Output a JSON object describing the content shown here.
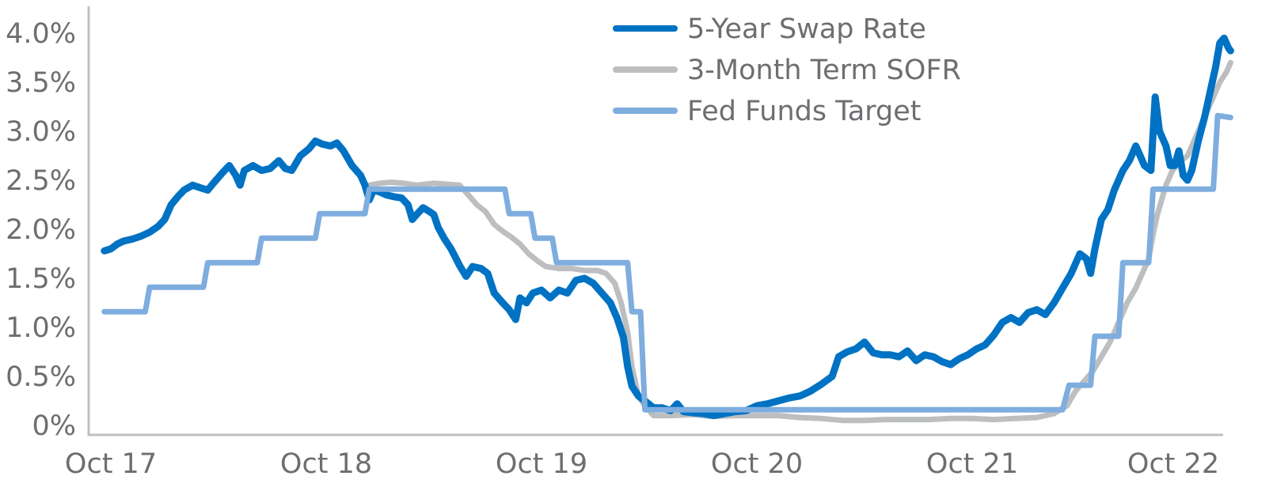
{
  "chart_data": {
    "type": "line",
    "title": "",
    "xlabel": "",
    "ylabel": "",
    "ylim": [
      0,
      4.0
    ],
    "xlim": [
      0,
      5
    ],
    "grid": false,
    "legend_position": "top-center",
    "y_ticks": [
      {
        "value": 4.0,
        "label": "4.0%"
      },
      {
        "value": 3.5,
        "label": "3.5%"
      },
      {
        "value": 3.0,
        "label": "3.0%"
      },
      {
        "value": 2.5,
        "label": "2.5%"
      },
      {
        "value": 2.0,
        "label": "2.0%"
      },
      {
        "value": 1.5,
        "label": "1.5%"
      },
      {
        "value": 1.0,
        "label": "1.0%"
      },
      {
        "value": 0.5,
        "label": "0.5%"
      },
      {
        "value": 0.0,
        "label": "0%"
      }
    ],
    "x_ticks": [
      {
        "value": 0,
        "label": "Oct 17"
      },
      {
        "value": 1,
        "label": "Oct 18"
      },
      {
        "value": 2,
        "label": "Oct 19"
      },
      {
        "value": 3,
        "label": "Oct 20"
      },
      {
        "value": 4,
        "label": "Oct 21"
      },
      {
        "value": 5,
        "label": "Oct 22"
      }
    ],
    "series": [
      {
        "name": "5-Year Swap Rate",
        "color": "#0072c3",
        "points": [
          [
            -0.03,
            1.78
          ],
          [
            0.0,
            1.8
          ],
          [
            0.03,
            1.85
          ],
          [
            0.06,
            1.88
          ],
          [
            0.1,
            1.9
          ],
          [
            0.14,
            1.93
          ],
          [
            0.18,
            1.97
          ],
          [
            0.22,
            2.03
          ],
          [
            0.25,
            2.1
          ],
          [
            0.28,
            2.25
          ],
          [
            0.31,
            2.33
          ],
          [
            0.34,
            2.4
          ],
          [
            0.38,
            2.45
          ],
          [
            0.42,
            2.42
          ],
          [
            0.45,
            2.4
          ],
          [
            0.48,
            2.48
          ],
          [
            0.52,
            2.58
          ],
          [
            0.55,
            2.65
          ],
          [
            0.58,
            2.55
          ],
          [
            0.6,
            2.45
          ],
          [
            0.62,
            2.6
          ],
          [
            0.66,
            2.65
          ],
          [
            0.7,
            2.6
          ],
          [
            0.74,
            2.62
          ],
          [
            0.78,
            2.7
          ],
          [
            0.81,
            2.62
          ],
          [
            0.84,
            2.6
          ],
          [
            0.88,
            2.75
          ],
          [
            0.92,
            2.82
          ],
          [
            0.95,
            2.9
          ],
          [
            0.98,
            2.87
          ],
          [
            1.02,
            2.85
          ],
          [
            1.05,
            2.88
          ],
          [
            1.08,
            2.8
          ],
          [
            1.12,
            2.65
          ],
          [
            1.16,
            2.55
          ],
          [
            1.18,
            2.45
          ],
          [
            1.2,
            2.3
          ],
          [
            1.22,
            2.4
          ],
          [
            1.25,
            2.38
          ],
          [
            1.28,
            2.35
          ],
          [
            1.32,
            2.33
          ],
          [
            1.35,
            2.32
          ],
          [
            1.38,
            2.25
          ],
          [
            1.4,
            2.1
          ],
          [
            1.42,
            2.15
          ],
          [
            1.45,
            2.22
          ],
          [
            1.48,
            2.18
          ],
          [
            1.5,
            2.15
          ],
          [
            1.52,
            2.02
          ],
          [
            1.55,
            1.9
          ],
          [
            1.58,
            1.8
          ],
          [
            1.62,
            1.63
          ],
          [
            1.65,
            1.52
          ],
          [
            1.68,
            1.62
          ],
          [
            1.72,
            1.6
          ],
          [
            1.75,
            1.55
          ],
          [
            1.78,
            1.35
          ],
          [
            1.82,
            1.25
          ],
          [
            1.85,
            1.18
          ],
          [
            1.88,
            1.08
          ],
          [
            1.9,
            1.3
          ],
          [
            1.93,
            1.25
          ],
          [
            1.96,
            1.35
          ],
          [
            2.0,
            1.38
          ],
          [
            2.04,
            1.3
          ],
          [
            2.08,
            1.38
          ],
          [
            2.12,
            1.35
          ],
          [
            2.16,
            1.48
          ],
          [
            2.2,
            1.5
          ],
          [
            2.24,
            1.45
          ],
          [
            2.28,
            1.35
          ],
          [
            2.32,
            1.25
          ],
          [
            2.35,
            1.1
          ],
          [
            2.38,
            0.9
          ],
          [
            2.4,
            0.6
          ],
          [
            2.42,
            0.4
          ],
          [
            2.45,
            0.3
          ],
          [
            2.48,
            0.25
          ],
          [
            2.52,
            0.18
          ],
          [
            2.56,
            0.18
          ],
          [
            2.6,
            0.15
          ],
          [
            2.63,
            0.22
          ],
          [
            2.66,
            0.14
          ],
          [
            2.7,
            0.13
          ],
          [
            2.75,
            0.12
          ],
          [
            2.8,
            0.1
          ],
          [
            2.85,
            0.12
          ],
          [
            2.9,
            0.14
          ],
          [
            2.95,
            0.15
          ],
          [
            3.0,
            0.2
          ],
          [
            3.05,
            0.22
          ],
          [
            3.1,
            0.25
          ],
          [
            3.15,
            0.28
          ],
          [
            3.2,
            0.3
          ],
          [
            3.25,
            0.35
          ],
          [
            3.3,
            0.42
          ],
          [
            3.35,
            0.5
          ],
          [
            3.38,
            0.7
          ],
          [
            3.42,
            0.75
          ],
          [
            3.46,
            0.78
          ],
          [
            3.5,
            0.85
          ],
          [
            3.54,
            0.74
          ],
          [
            3.58,
            0.72
          ],
          [
            3.62,
            0.72
          ],
          [
            3.66,
            0.7
          ],
          [
            3.7,
            0.76
          ],
          [
            3.74,
            0.66
          ],
          [
            3.78,
            0.72
          ],
          [
            3.82,
            0.7
          ],
          [
            3.86,
            0.65
          ],
          [
            3.9,
            0.62
          ],
          [
            3.94,
            0.68
          ],
          [
            3.98,
            0.72
          ],
          [
            4.02,
            0.78
          ],
          [
            4.06,
            0.82
          ],
          [
            4.1,
            0.92
          ],
          [
            4.14,
            1.05
          ],
          [
            4.18,
            1.1
          ],
          [
            4.22,
            1.05
          ],
          [
            4.26,
            1.15
          ],
          [
            4.3,
            1.18
          ],
          [
            4.34,
            1.13
          ],
          [
            4.38,
            1.25
          ],
          [
            4.42,
            1.4
          ],
          [
            4.46,
            1.55
          ],
          [
            4.5,
            1.75
          ],
          [
            4.53,
            1.7
          ],
          [
            4.55,
            1.55
          ],
          [
            4.57,
            1.8
          ],
          [
            4.6,
            2.1
          ],
          [
            4.63,
            2.2
          ],
          [
            4.66,
            2.4
          ],
          [
            4.7,
            2.6
          ],
          [
            4.73,
            2.7
          ],
          [
            4.76,
            2.85
          ],
          [
            4.78,
            2.75
          ],
          [
            4.8,
            2.65
          ],
          [
            4.83,
            2.6
          ],
          [
            4.85,
            3.35
          ],
          [
            4.87,
            3.0
          ],
          [
            4.9,
            2.85
          ],
          [
            4.92,
            2.65
          ],
          [
            4.94,
            2.65
          ],
          [
            4.96,
            2.8
          ],
          [
            4.98,
            2.55
          ],
          [
            5.0,
            2.5
          ],
          [
            5.02,
            2.6
          ],
          [
            5.05,
            2.9
          ],
          [
            5.08,
            3.15
          ],
          [
            5.11,
            3.45
          ],
          [
            5.13,
            3.65
          ],
          [
            5.15,
            3.9
          ],
          [
            5.17,
            3.95
          ],
          [
            5.19,
            3.85
          ],
          [
            5.2,
            3.82
          ]
        ]
      },
      {
        "name": "3-Month Term SOFR",
        "color": "#bcbec0",
        "points": [
          [
            1.2,
            2.45
          ],
          [
            1.25,
            2.47
          ],
          [
            1.3,
            2.48
          ],
          [
            1.36,
            2.47
          ],
          [
            1.42,
            2.45
          ],
          [
            1.5,
            2.47
          ],
          [
            1.56,
            2.46
          ],
          [
            1.62,
            2.45
          ],
          [
            1.66,
            2.35
          ],
          [
            1.7,
            2.25
          ],
          [
            1.74,
            2.18
          ],
          [
            1.78,
            2.05
          ],
          [
            1.82,
            1.98
          ],
          [
            1.86,
            1.92
          ],
          [
            1.9,
            1.85
          ],
          [
            1.94,
            1.75
          ],
          [
            1.98,
            1.68
          ],
          [
            2.02,
            1.62
          ],
          [
            2.08,
            1.6
          ],
          [
            2.14,
            1.6
          ],
          [
            2.2,
            1.58
          ],
          [
            2.26,
            1.58
          ],
          [
            2.3,
            1.55
          ],
          [
            2.34,
            1.45
          ],
          [
            2.37,
            1.25
          ],
          [
            2.4,
            0.95
          ],
          [
            2.42,
            0.6
          ],
          [
            2.45,
            0.3
          ],
          [
            2.48,
            0.2
          ],
          [
            2.52,
            0.1
          ],
          [
            2.6,
            0.1
          ],
          [
            2.7,
            0.11
          ],
          [
            2.8,
            0.09
          ],
          [
            2.9,
            0.1
          ],
          [
            3.0,
            0.1
          ],
          [
            3.1,
            0.1
          ],
          [
            3.2,
            0.08
          ],
          [
            3.3,
            0.07
          ],
          [
            3.4,
            0.05
          ],
          [
            3.5,
            0.05
          ],
          [
            3.6,
            0.06
          ],
          [
            3.7,
            0.06
          ],
          [
            3.8,
            0.06
          ],
          [
            3.9,
            0.07
          ],
          [
            4.0,
            0.07
          ],
          [
            4.1,
            0.06
          ],
          [
            4.2,
            0.07
          ],
          [
            4.3,
            0.08
          ],
          [
            4.38,
            0.12
          ],
          [
            4.44,
            0.2
          ],
          [
            4.48,
            0.35
          ],
          [
            4.52,
            0.45
          ],
          [
            4.56,
            0.55
          ],
          [
            4.6,
            0.7
          ],
          [
            4.64,
            0.85
          ],
          [
            4.68,
            1.05
          ],
          [
            4.72,
            1.25
          ],
          [
            4.76,
            1.4
          ],
          [
            4.8,
            1.6
          ],
          [
            4.82,
            1.7
          ],
          [
            4.84,
            1.95
          ],
          [
            4.86,
            2.15
          ],
          [
            4.88,
            2.3
          ],
          [
            4.9,
            2.45
          ],
          [
            4.93,
            2.6
          ],
          [
            4.96,
            2.68
          ],
          [
            5.0,
            2.75
          ],
          [
            5.03,
            2.9
          ],
          [
            5.06,
            3.05
          ],
          [
            5.09,
            3.2
          ],
          [
            5.12,
            3.35
          ],
          [
            5.15,
            3.5
          ],
          [
            5.18,
            3.6
          ],
          [
            5.2,
            3.7
          ]
        ]
      },
      {
        "name": "Fed Funds Target",
        "color": "#7eadde",
        "steps": [
          [
            -0.03,
            1.16
          ],
          [
            0.16,
            1.16
          ],
          [
            0.18,
            1.41
          ],
          [
            0.43,
            1.41
          ],
          [
            0.45,
            1.66
          ],
          [
            0.68,
            1.66
          ],
          [
            0.7,
            1.91
          ],
          [
            0.95,
            1.91
          ],
          [
            0.97,
            2.16
          ],
          [
            1.18,
            2.16
          ],
          [
            1.2,
            2.41
          ],
          [
            1.83,
            2.41
          ],
          [
            1.85,
            2.16
          ],
          [
            1.95,
            2.16
          ],
          [
            1.97,
            1.91
          ],
          [
            2.05,
            1.91
          ],
          [
            2.07,
            1.66
          ],
          [
            2.4,
            1.66
          ],
          [
            2.42,
            1.16
          ],
          [
            2.46,
            1.16
          ],
          [
            2.48,
            0.16
          ],
          [
            3.2,
            0.16
          ],
          [
            3.8,
            0.16
          ],
          [
            4.42,
            0.16
          ],
          [
            4.45,
            0.41
          ],
          [
            4.55,
            0.41
          ],
          [
            4.57,
            0.91
          ],
          [
            4.68,
            0.91
          ],
          [
            4.7,
            1.66
          ],
          [
            4.82,
            1.66
          ],
          [
            4.84,
            2.41
          ],
          [
            5.12,
            2.41
          ],
          [
            5.14,
            3.16
          ],
          [
            5.2,
            3.14
          ]
        ]
      }
    ]
  }
}
